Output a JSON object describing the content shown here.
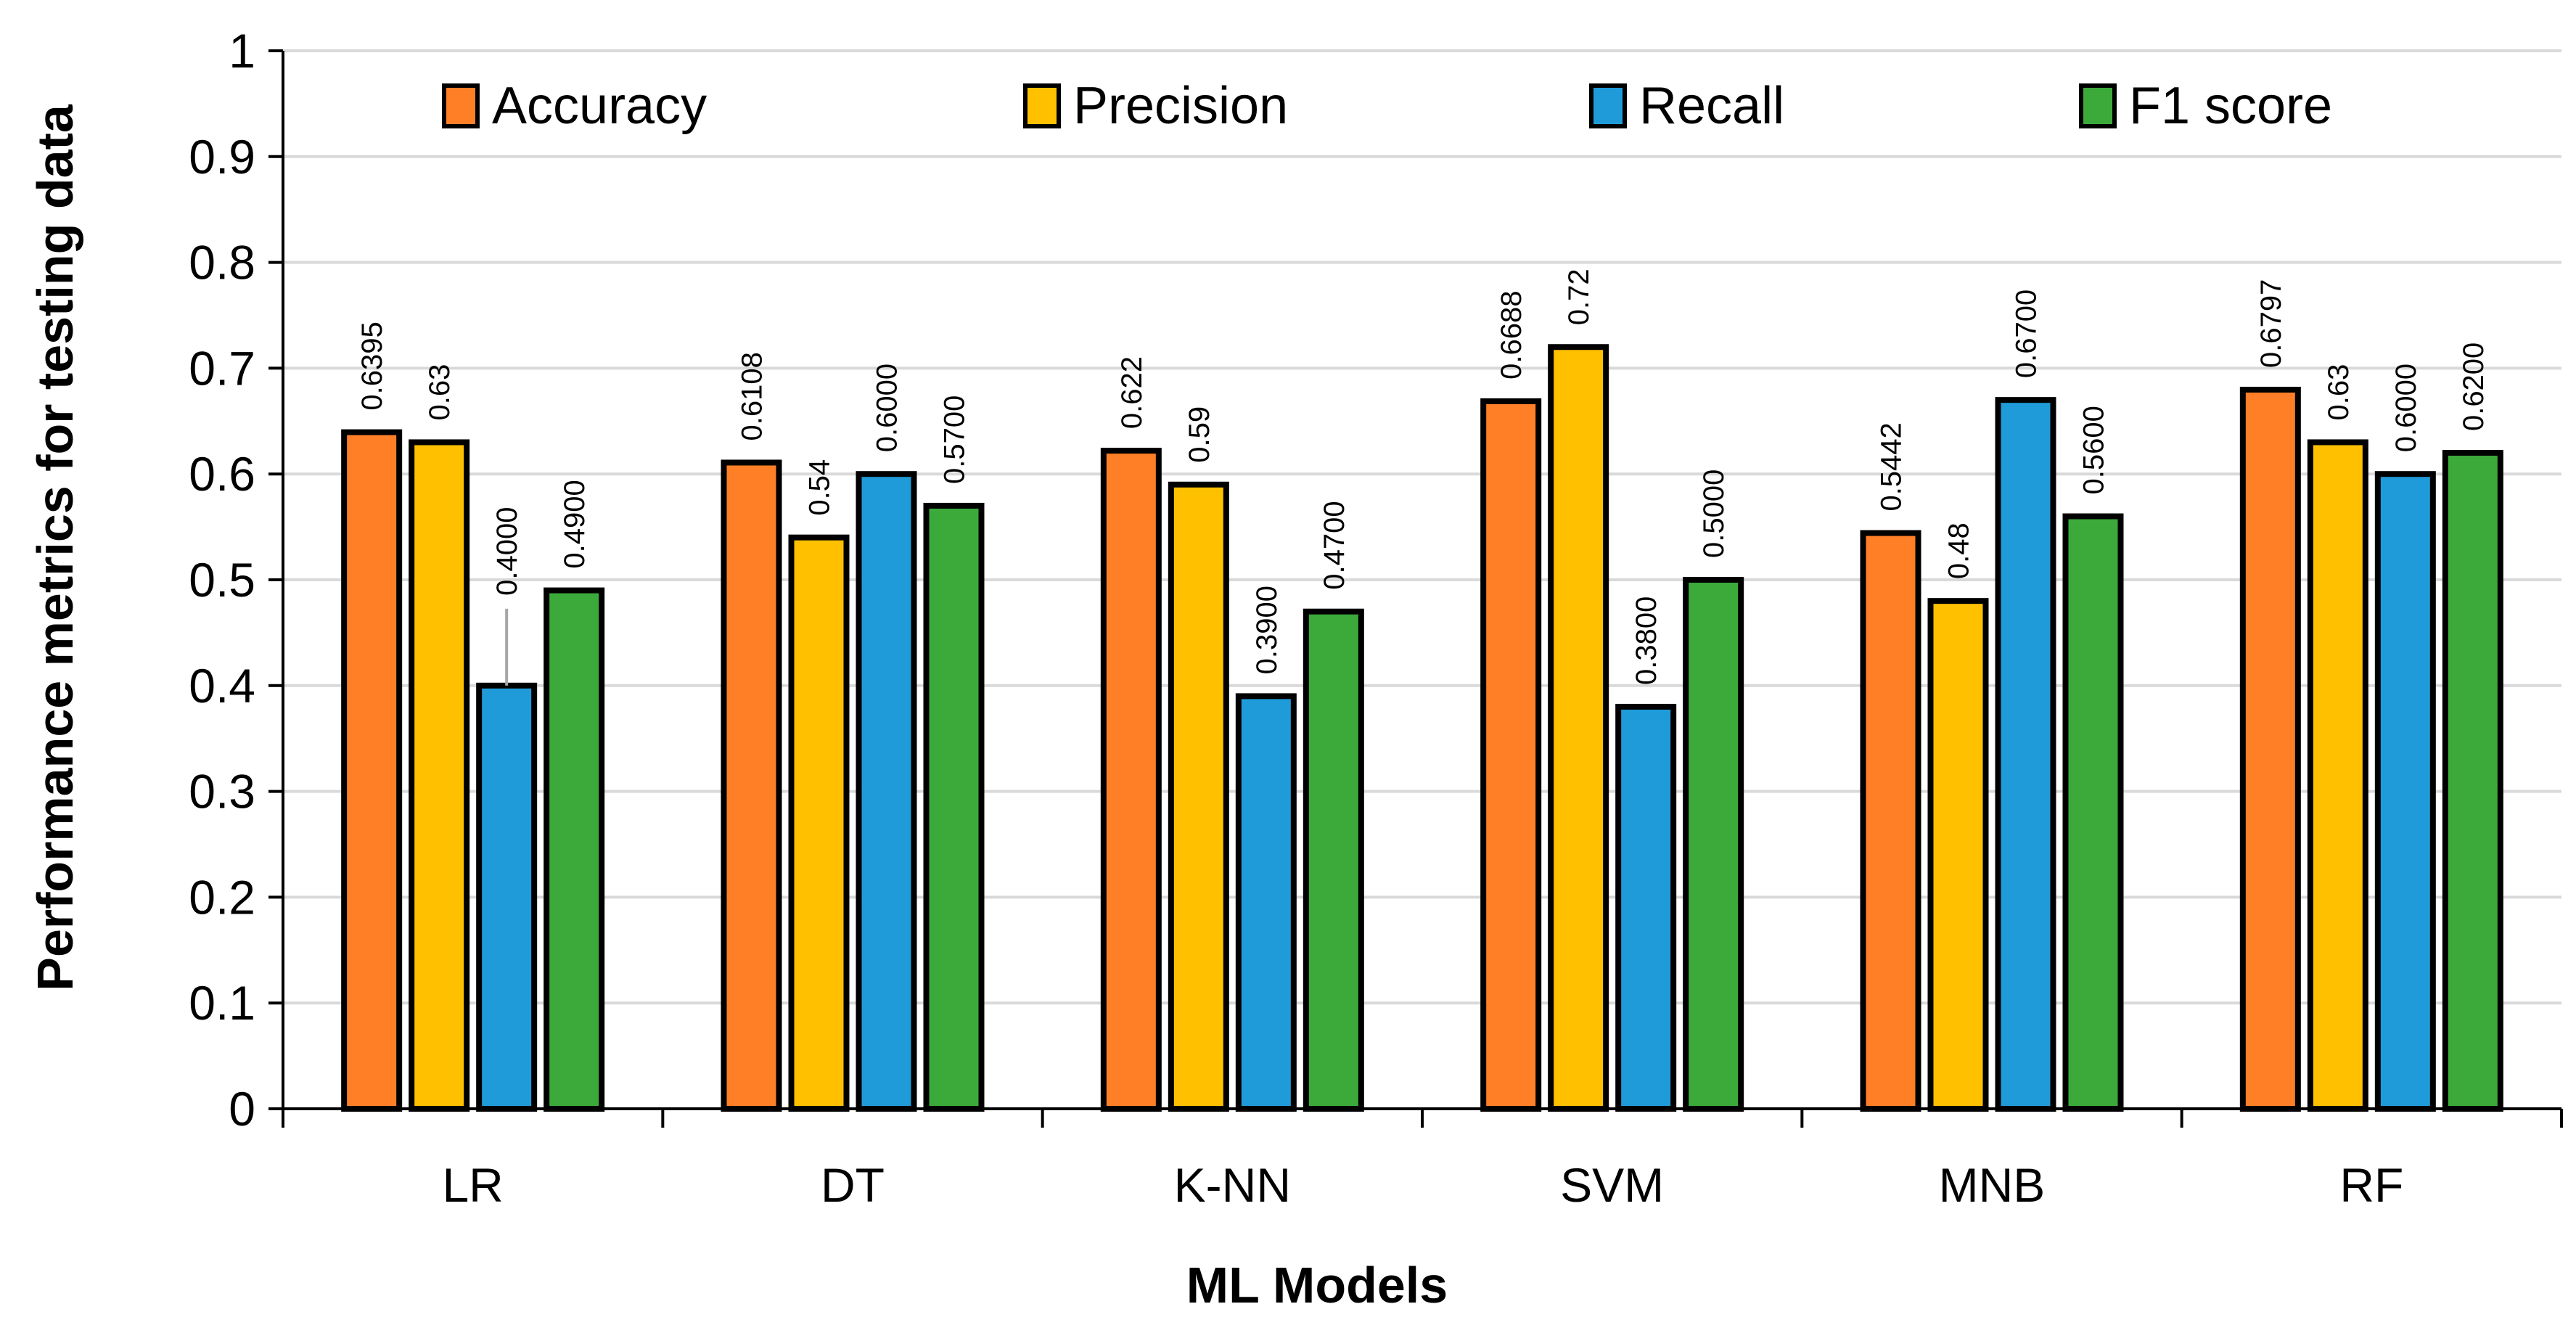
{
  "chart_data": {
    "type": "bar",
    "title": "",
    "xlabel": "ML Models",
    "ylabel": "Performance metrics for testing data",
    "ylim": [
      0,
      1
    ],
    "yticks": [
      0,
      0.1,
      0.2,
      0.3,
      0.4,
      0.5,
      0.6,
      0.7,
      0.8,
      0.9,
      1
    ],
    "ytick_labels": [
      "0",
      "0.1",
      "0.2",
      "0.3",
      "0.4",
      "0.5",
      "0.6",
      "0.7",
      "0.8",
      "0.9",
      "1"
    ],
    "grid": true,
    "legend_position": "top",
    "categories": [
      "LR",
      "DT",
      "K-NN",
      "SVM",
      "MNB",
      "RF"
    ],
    "series": [
      {
        "name": "Accuracy",
        "color": "#FF7F27",
        "values": [
          0.6395,
          0.6108,
          0.622,
          0.6688,
          0.5442,
          0.6797
        ],
        "labels": [
          "0.6395",
          "0.6108",
          "0.622",
          "0.6688",
          "0.5442",
          "0.6797"
        ]
      },
      {
        "name": "Precision",
        "color": "#FFC000",
        "values": [
          0.63,
          0.54,
          0.59,
          0.72,
          0.48,
          0.63
        ],
        "labels": [
          "0.63",
          "0.54",
          "0.59",
          "0.72",
          "0.48",
          "0.63"
        ]
      },
      {
        "name": "Recall",
        "color": "#1F9BD9",
        "values": [
          0.4,
          0.6,
          0.39,
          0.38,
          0.67,
          0.6
        ],
        "labels": [
          "0.4000",
          "0.6000",
          "0.3900",
          "0.3800",
          "0.6700",
          "0.6000"
        ]
      },
      {
        "name": "F1 score",
        "color": "#3BAA3B",
        "values": [
          0.49,
          0.57,
          0.47,
          0.5,
          0.56,
          0.62
        ],
        "labels": [
          "0.4900",
          "0.5700",
          "0.4700",
          "0.5000",
          "0.5600",
          "0.6200"
        ]
      }
    ]
  }
}
